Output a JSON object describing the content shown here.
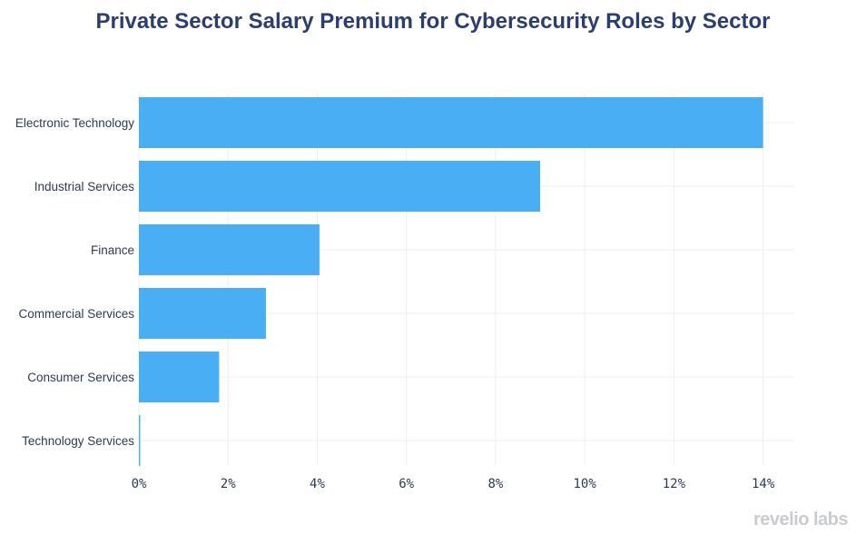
{
  "title": "Private Sector Salary Premium for Cybersecurity Roles by Sector",
  "watermark": "revelio labs",
  "colors": {
    "bar": "#4aaef5",
    "grid": "#eceef1",
    "title": "#2a3f6b",
    "axis_text": "#2d3a55"
  },
  "chart_data": {
    "type": "bar",
    "orientation": "horizontal",
    "title": "Private Sector Salary Premium for Cybersecurity Roles by Sector",
    "categories": [
      "Electronic Technology",
      "Industrial Services",
      "Finance",
      "Commercial Services",
      "Consumer Services",
      "Technology Services"
    ],
    "values": [
      14.0,
      9.0,
      4.05,
      2.85,
      1.8,
      0.03
    ],
    "unit": "%",
    "xlim": [
      0,
      14.7
    ],
    "xticks": [
      0,
      2,
      4,
      6,
      8,
      10,
      12,
      14
    ],
    "xtick_labels": [
      "0%",
      "2%",
      "4%",
      "6%",
      "8%",
      "10%",
      "12%",
      "14%"
    ],
    "xlabel": "",
    "ylabel": "",
    "grid": true
  }
}
